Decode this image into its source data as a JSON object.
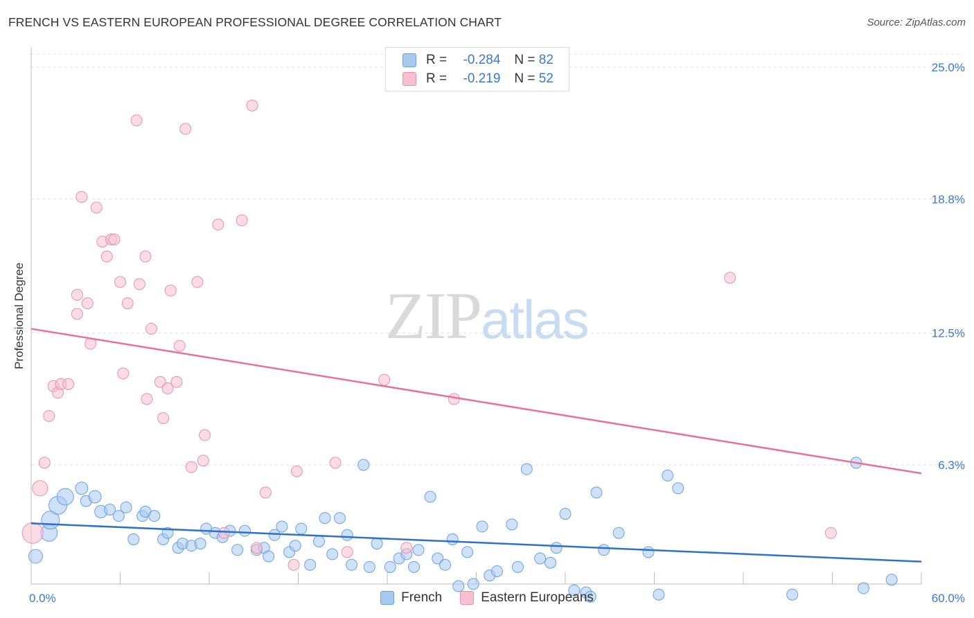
{
  "header": {
    "title": "FRENCH VS EASTERN EUROPEAN PROFESSIONAL DEGREE CORRELATION CHART",
    "source": "Source: ZipAtlas.com"
  },
  "watermark": {
    "zip": "ZIP",
    "atlas": "atlas"
  },
  "legend": {
    "rows": [
      {
        "r_label": "R =",
        "r_value": "-0.284",
        "n_label": "N =",
        "n_value": "82"
      },
      {
        "r_label": "R =",
        "r_value": "-0.219",
        "n_label": "N =",
        "n_value": "52"
      }
    ]
  },
  "colors": {
    "french_fill": "#a8c8f0",
    "french_stroke": "#6b9fe0",
    "french_line": "#2e6fcf",
    "eastern_fill": "#f7c0d0",
    "eastern_stroke": "#e890aa",
    "eastern_line": "#e8709a",
    "axis_label": "#3a78d0",
    "grid": "#dddddd"
  },
  "chart_data": {
    "type": "scatter",
    "title": "FRENCH VS EASTERN EUROPEAN PROFESSIONAL DEGREE CORRELATION CHART",
    "xlabel": "",
    "ylabel": "Professional Degree",
    "xlim": [
      0,
      60
    ],
    "ylim": [
      0,
      25.6
    ],
    "x_tick_labels": [
      "0.0%",
      "60.0%"
    ],
    "y_ticks": [
      6.3,
      12.5,
      18.8,
      25.0
    ],
    "y_tick_labels": [
      "6.3%",
      "12.5%",
      "18.8%",
      "25.0%"
    ],
    "grid": true,
    "legend_position": "top-center",
    "series": [
      {
        "name": "French",
        "r": -0.284,
        "n": 82,
        "trend": {
          "x": [
            0,
            60
          ],
          "y": [
            3.55,
            1.75
          ]
        },
        "points": [
          [
            0.3,
            2.0,
            10
          ],
          [
            1.2,
            3.1,
            12
          ],
          [
            1.3,
            3.7,
            13
          ],
          [
            1.8,
            4.4,
            13
          ],
          [
            2.3,
            4.8,
            12
          ],
          [
            3.4,
            5.2,
            9
          ],
          [
            3.7,
            4.6,
            8
          ],
          [
            4.3,
            4.8,
            9
          ],
          [
            4.7,
            4.1,
            9
          ],
          [
            5.3,
            4.2,
            8
          ],
          [
            5.9,
            3.9,
            8
          ],
          [
            6.4,
            4.3,
            8
          ],
          [
            6.9,
            2.8,
            8
          ],
          [
            7.5,
            3.9,
            8
          ],
          [
            7.7,
            4.1,
            8
          ],
          [
            8.3,
            3.9,
            8
          ],
          [
            8.9,
            2.8,
            8
          ],
          [
            9.2,
            3.1,
            8
          ],
          [
            9.9,
            2.4,
            8
          ],
          [
            10.2,
            2.6,
            8
          ],
          [
            10.8,
            2.5,
            8
          ],
          [
            11.4,
            2.6,
            8
          ],
          [
            11.8,
            3.3,
            8
          ],
          [
            12.4,
            3.1,
            8
          ],
          [
            12.9,
            2.9,
            8
          ],
          [
            13.4,
            3.2,
            8
          ],
          [
            13.9,
            2.3,
            8
          ],
          [
            14.4,
            3.2,
            8
          ],
          [
            15.2,
            2.3,
            8
          ],
          [
            15.7,
            2.4,
            8
          ],
          [
            16.0,
            2.0,
            8
          ],
          [
            16.4,
            3.0,
            8
          ],
          [
            16.9,
            3.4,
            8
          ],
          [
            17.4,
            2.2,
            8
          ],
          [
            17.8,
            2.5,
            8
          ],
          [
            18.2,
            3.3,
            8
          ],
          [
            18.8,
            1.6,
            8
          ],
          [
            19.4,
            2.7,
            8
          ],
          [
            19.8,
            3.8,
            8
          ],
          [
            20.3,
            2.1,
            8
          ],
          [
            20.8,
            3.8,
            8
          ],
          [
            21.3,
            3.0,
            8
          ],
          [
            21.6,
            1.6,
            8
          ],
          [
            22.4,
            6.3,
            8
          ],
          [
            22.8,
            1.5,
            8
          ],
          [
            23.3,
            2.6,
            8
          ],
          [
            24.2,
            1.5,
            8
          ],
          [
            24.8,
            1.9,
            8
          ],
          [
            25.3,
            2.1,
            8
          ],
          [
            25.8,
            1.5,
            8
          ],
          [
            26.1,
            2.3,
            8
          ],
          [
            26.9,
            4.8,
            8
          ],
          [
            27.4,
            1.9,
            8
          ],
          [
            27.9,
            1.6,
            8
          ],
          [
            28.4,
            2.8,
            8
          ],
          [
            28.8,
            0.6,
            8
          ],
          [
            29.4,
            2.2,
            8
          ],
          [
            29.8,
            0.7,
            8
          ],
          [
            30.4,
            3.4,
            8
          ],
          [
            30.9,
            1.1,
            8
          ],
          [
            31.4,
            1.3,
            8
          ],
          [
            32.4,
            3.5,
            8
          ],
          [
            32.8,
            1.5,
            8
          ],
          [
            33.4,
            6.1,
            8
          ],
          [
            34.3,
            1.9,
            8
          ],
          [
            35.0,
            1.7,
            8
          ],
          [
            35.4,
            2.4,
            8
          ],
          [
            36.0,
            4.0,
            8
          ],
          [
            36.6,
            0.4,
            8
          ],
          [
            37.4,
            0.3,
            8
          ],
          [
            37.7,
            0.1,
            8
          ],
          [
            38.1,
            5.0,
            8
          ],
          [
            38.6,
            2.3,
            8
          ],
          [
            39.6,
            3.1,
            8
          ],
          [
            41.6,
            2.2,
            8
          ],
          [
            42.3,
            0.2,
            8
          ],
          [
            42.9,
            5.8,
            8
          ],
          [
            43.6,
            5.2,
            8
          ],
          [
            51.3,
            0.2,
            8
          ],
          [
            55.6,
            6.4,
            8
          ],
          [
            56.1,
            0.5,
            8
          ],
          [
            58.0,
            0.9,
            8
          ]
        ]
      },
      {
        "name": "Eastern Europeans",
        "r": -0.219,
        "n": 52,
        "trend": {
          "x": [
            0,
            60
          ],
          "y": [
            12.7,
            5.9
          ]
        },
        "points": [
          [
            0.1,
            3.1,
            15
          ],
          [
            0.6,
            5.2,
            11
          ],
          [
            0.9,
            6.4,
            8
          ],
          [
            1.2,
            8.6,
            8
          ],
          [
            1.5,
            10.0,
            8
          ],
          [
            1.8,
            9.7,
            8
          ],
          [
            2.0,
            10.1,
            8
          ],
          [
            2.5,
            10.1,
            8
          ],
          [
            3.1,
            13.4,
            8
          ],
          [
            3.1,
            14.3,
            8
          ],
          [
            3.4,
            18.9,
            8
          ],
          [
            3.8,
            13.9,
            8
          ],
          [
            4.0,
            12.0,
            8
          ],
          [
            4.4,
            18.4,
            8
          ],
          [
            4.8,
            16.8,
            8
          ],
          [
            5.1,
            16.1,
            8
          ],
          [
            5.4,
            16.9,
            8
          ],
          [
            5.6,
            16.9,
            8
          ],
          [
            6.0,
            14.9,
            8
          ],
          [
            6.2,
            10.6,
            8
          ],
          [
            6.5,
            13.9,
            8
          ],
          [
            7.1,
            22.5,
            8
          ],
          [
            7.3,
            14.8,
            8
          ],
          [
            7.7,
            16.1,
            8
          ],
          [
            7.8,
            9.4,
            8
          ],
          [
            8.1,
            12.7,
            8
          ],
          [
            8.7,
            10.2,
            8
          ],
          [
            8.9,
            8.5,
            8
          ],
          [
            9.2,
            9.9,
            8
          ],
          [
            9.4,
            14.5,
            8
          ],
          [
            9.8,
            10.2,
            8
          ],
          [
            10.0,
            11.9,
            8
          ],
          [
            10.4,
            22.1,
            8
          ],
          [
            10.8,
            6.2,
            8
          ],
          [
            11.2,
            14.9,
            8
          ],
          [
            11.6,
            6.5,
            8
          ],
          [
            11.7,
            7.7,
            8
          ],
          [
            12.6,
            17.6,
            8
          ],
          [
            13.0,
            3.1,
            8
          ],
          [
            14.2,
            17.8,
            8
          ],
          [
            14.9,
            23.2,
            8
          ],
          [
            15.2,
            2.4,
            8
          ],
          [
            15.8,
            5.0,
            8
          ],
          [
            17.7,
            1.6,
            8
          ],
          [
            17.9,
            6.0,
            8
          ],
          [
            20.5,
            6.4,
            8
          ],
          [
            21.3,
            2.2,
            8
          ],
          [
            23.8,
            10.3,
            8
          ],
          [
            25.3,
            2.4,
            8
          ],
          [
            28.5,
            9.4,
            8
          ],
          [
            47.1,
            15.1,
            8
          ],
          [
            53.9,
            3.1,
            8
          ]
        ]
      }
    ]
  }
}
